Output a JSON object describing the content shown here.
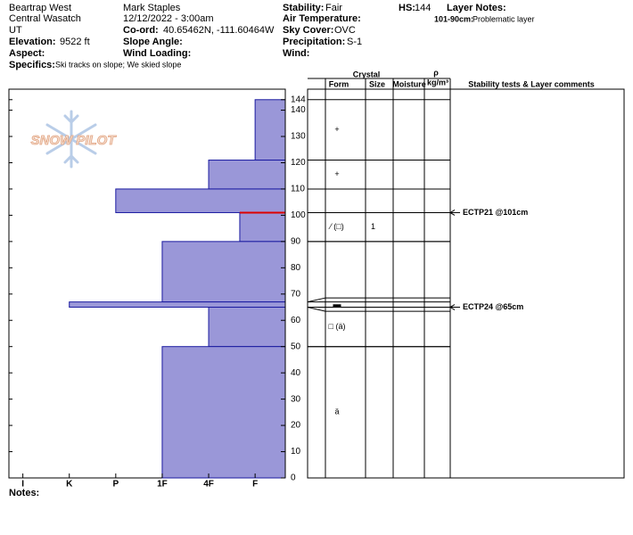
{
  "header": {
    "location": "Beartrap West",
    "range": "Central Wasatch",
    "state": "UT",
    "elevation": {
      "label": "Elevation:",
      "value": "9522 ft"
    },
    "aspect": {
      "label": "Aspect:"
    },
    "specifics": {
      "label": "Specifics:",
      "value": "Ski tracks on slope; We skied slope"
    },
    "observer": "Mark Staples",
    "datetime": "12/12/2022 - 3:00am",
    "coord": {
      "label": "Co-ord:",
      "value": "40.65462N, -111.60464W"
    },
    "slope_angle": {
      "label": "Slope Angle:"
    },
    "wind_loading": {
      "label": "Wind Loading:"
    },
    "stability": {
      "label": "Stability:",
      "value": "Fair"
    },
    "air_temperature": {
      "label": "Air Temperature:"
    },
    "sky_cover": {
      "label": "Sky Cover:",
      "value": "OVC"
    },
    "precipitation": {
      "label": "Precipitation:",
      "value": "S-1"
    },
    "wind": {
      "label": "Wind:"
    },
    "hs": {
      "label": "HS:",
      "value": 144
    },
    "layer_notes": {
      "label": "Layer Notes:",
      "range": "101-90cm:",
      "text": "Problematic layer"
    }
  },
  "logo": "SNOW PILOT",
  "chart_data": {
    "type": "snow-profile",
    "color": "#9a97d8",
    "xlim": [
      6.3,
      0.35
    ],
    "xticks": [
      {
        "value": 6,
        "label": "I"
      },
      {
        "value": 5,
        "label": "K"
      },
      {
        "value": 4,
        "label": "P"
      },
      {
        "value": 3,
        "label": "1F"
      },
      {
        "value": 2,
        "label": "4F"
      },
      {
        "value": 1,
        "label": "F"
      }
    ],
    "ylim": [
      0,
      148
    ],
    "yticks": [
      0,
      10,
      20,
      30,
      40,
      50,
      60,
      70,
      80,
      90,
      100,
      110,
      120,
      130,
      140,
      144
    ],
    "columns": {
      "crystal": "Crystal",
      "form": "Form",
      "size": "Size",
      "moisture": "Moisture",
      "density": "ρ",
      "density_unit": "kg/m³",
      "comments": "Stability tests & Layer comments"
    },
    "layers": [
      {
        "top": 144,
        "bottom": 121,
        "hardness": 1,
        "form": "+"
      },
      {
        "top": 121,
        "bottom": 110,
        "hardness": 2,
        "form": "+"
      },
      {
        "top": 110,
        "bottom": 101,
        "hardness": 4
      },
      {
        "top": 101,
        "bottom": 90,
        "hardness": 1.33,
        "form": "⁄ (□)",
        "size": 1
      },
      {
        "top": 90,
        "bottom": 67,
        "hardness": 3
      },
      {
        "top": 67,
        "bottom": 65,
        "hardness": 5,
        "form": "▬"
      },
      {
        "top": 65,
        "bottom": 50,
        "hardness": 2,
        "form": "□ (ä)"
      },
      {
        "top": 50,
        "bottom": 0,
        "hardness": 3,
        "form": "ä"
      }
    ],
    "problem_depth": 101,
    "tests": [
      {
        "depth": 101,
        "label": "ECTP21 @101cm"
      },
      {
        "depth": 65,
        "label": "ECTP24 @65cm"
      }
    ],
    "notes": "Notes:"
  }
}
